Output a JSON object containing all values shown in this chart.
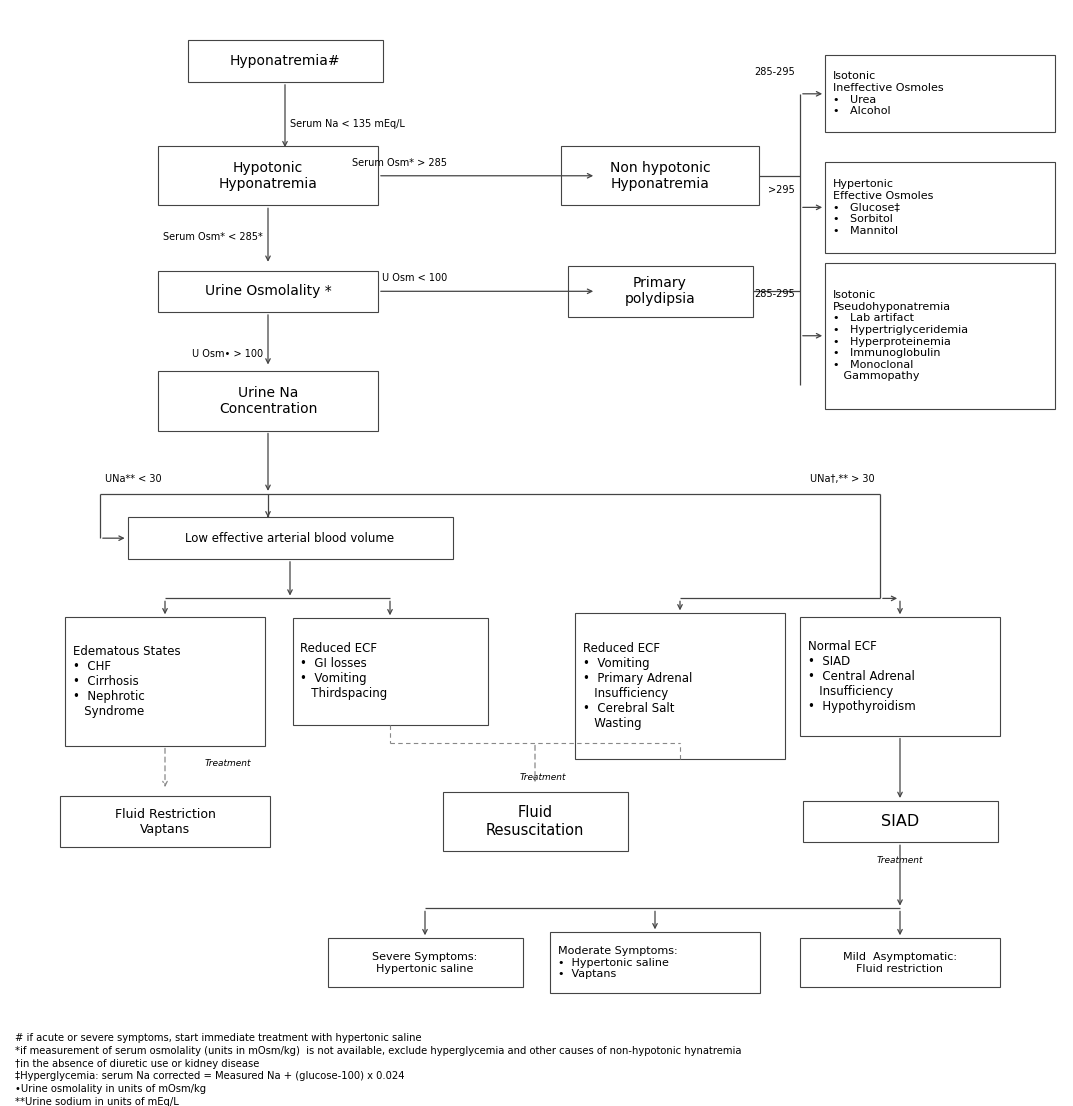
{
  "fig_width": 10.73,
  "fig_height": 11.06,
  "bg_color": "#ffffff",
  "box_edge_color": "#444444",
  "text_color": "#000000",
  "arrow_color": "#444444",
  "dashed_color": "#888888",
  "font_size": 8.5,
  "footnote_font_size": 7.2,
  "footnotes": [
    "# if acute or severe symptoms, start immediate treatment with hypertonic saline",
    "*if measurement of serum osmolality (units in mOsm/kg)  is not available, exclude hyperglycemia and other causes of non-hypotonic hynatremia",
    "†in the absence of diuretic use or kidney disease",
    "‡Hyperglycemia: serum Na corrected = Measured Na + (glucose-100) x 0.024",
    "•Urine osmolality in units of mOsm/kg",
    "**Urine sodium in units of mEq/L"
  ]
}
